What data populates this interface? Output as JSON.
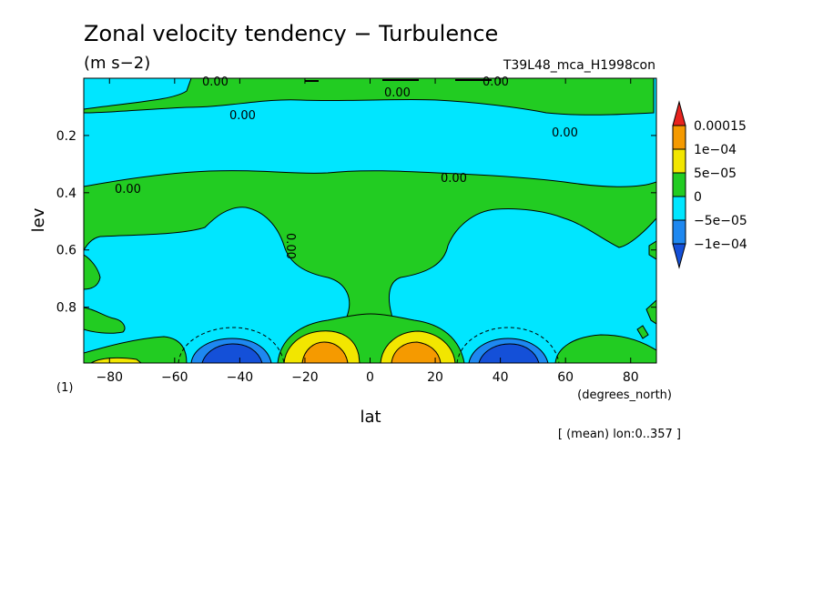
{
  "chart_data": {
    "type": "heatmap",
    "title": "Zonal velocity tendency − Turbulence",
    "units": "(m s−2)",
    "run_label": "T39L48_mca_H1998con",
    "xlabel": "lat",
    "x_units": "(degrees_north)",
    "ylabel": "lev",
    "y_units": "(1)",
    "footer": "[ (mean) lon:0..357 ]",
    "xlim": [
      -87.9,
      87.9
    ],
    "ylim": [
      0.0,
      0.995
    ],
    "y_reversed": true,
    "x_ticks": [
      -80,
      -60,
      -40,
      -20,
      0,
      20,
      40,
      60,
      80
    ],
    "x_tick_labels": [
      "−80",
      "−60",
      "−40",
      "−20",
      "0",
      "20",
      "40",
      "60",
      "80"
    ],
    "y_ticks": [
      0.2,
      0.4,
      0.6,
      0.8
    ],
    "y_tick_labels": [
      "0.2",
      "0.4",
      "0.6",
      "0.8"
    ],
    "levels": [
      -0.0001,
      -5e-05,
      0,
      5e-05,
      0.0001,
      0.00015
    ],
    "colorbar": {
      "labels": [
        "0.00015",
        "1e−04",
        "5e−05",
        "0",
        "−5e−05",
        "−1e−04"
      ],
      "colors": [
        "#e8231e",
        "#f59a00",
        "#f2e600",
        "#22cc22",
        "#00e6ff",
        "#1e88f0",
        "#1450d8"
      ]
    },
    "contour_labels": [
      "0.00",
      "0.00",
      "0.00",
      "0.00",
      "0.00",
      "0.00",
      "0.00",
      "0.00"
    ],
    "features": [
      {
        "lat": -40,
        "lev": 0.97,
        "sign": "negative",
        "magnitude": "<-1e-04"
      },
      {
        "lat": 40,
        "lev": 0.97,
        "sign": "negative",
        "magnitude": "<-1e-04"
      },
      {
        "lat": -15,
        "lev": 0.96,
        "sign": "positive",
        "magnitude": ">1e-04"
      },
      {
        "lat": 15,
        "lev": 0.96,
        "sign": "positive",
        "magnitude": ">1e-04"
      },
      {
        "lat": -80,
        "lev": 0.98,
        "sign": "positive",
        "magnitude": "5e-05..1e-04"
      },
      {
        "lat": 0,
        "lev": 0.85,
        "sign": "positive",
        "magnitude": "0..5e-05"
      }
    ]
  }
}
